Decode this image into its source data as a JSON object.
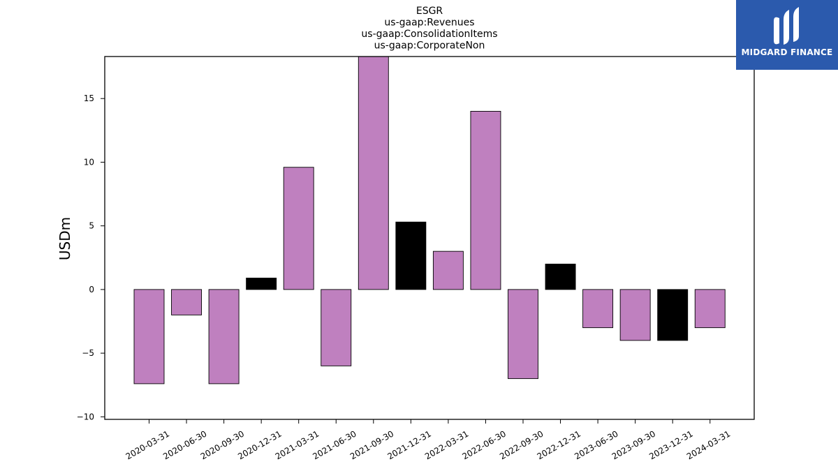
{
  "logo": {
    "text": "MIDGARD FINANCE",
    "icon": "midgard-m-logo-icon",
    "background": "#2b5aad"
  },
  "chart_data": {
    "type": "bar",
    "title_lines": [
      "ESGR",
      "us-gaap:Revenues",
      "us-gaap:ConsolidationItems",
      "us-gaap:CorporateNon"
    ],
    "xlabel": "",
    "ylabel": "USDm",
    "ylim": [
      -10.2,
      18.3
    ],
    "yticks": [
      -10,
      -5,
      0,
      5,
      10,
      15
    ],
    "ytick_labels": [
      "−10",
      "−5",
      "0",
      "5",
      "10",
      "15"
    ],
    "grid": false,
    "categories": [
      "2020-03-31",
      "2020-06-30",
      "2020-09-30",
      "2020-12-31",
      "2021-03-31",
      "2021-06-30",
      "2021-09-30",
      "2021-12-31",
      "2022-03-31",
      "2022-06-30",
      "2022-09-30",
      "2022-12-31",
      "2023-06-30",
      "2023-09-30",
      "2023-12-31",
      "2024-03-31"
    ],
    "values": [
      -7.4,
      -2.0,
      -7.4,
      0.9,
      9.6,
      -6.0,
      18.3,
      5.3,
      3.0,
      14.0,
      -7.0,
      2.0,
      -3.0,
      -4.0,
      -4.0,
      -3.0
    ],
    "bar_colors": [
      "#bf80bf",
      "#bf80bf",
      "#bf80bf",
      "#000000",
      "#bf80bf",
      "#bf80bf",
      "#bf80bf",
      "#000000",
      "#bf80bf",
      "#bf80bf",
      "#bf80bf",
      "#000000",
      "#bf80bf",
      "#bf80bf",
      "#000000",
      "#bf80bf"
    ]
  }
}
